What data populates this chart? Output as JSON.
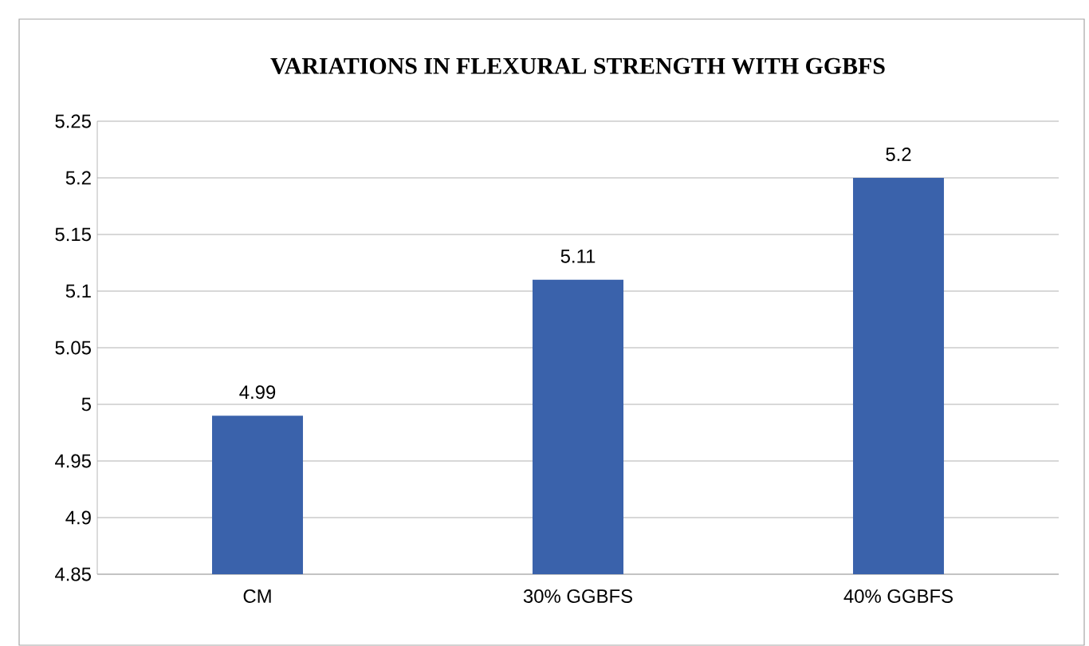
{
  "chart_data": {
    "type": "bar",
    "title": "VARIATIONS  IN  FLEXURAL STRENGTH WITH GGBFS",
    "categories": [
      "CM",
      "30% GGBFS",
      "40% GGBFS"
    ],
    "values": [
      4.99,
      5.11,
      5.2
    ],
    "color": "#3a62ab",
    "ylim": [
      4.85,
      5.25
    ],
    "yticks": [
      4.85,
      4.9,
      4.95,
      5,
      5.05,
      5.1,
      5.15,
      5.2,
      5.25
    ],
    "grid": "y",
    "data_labels": true
  }
}
